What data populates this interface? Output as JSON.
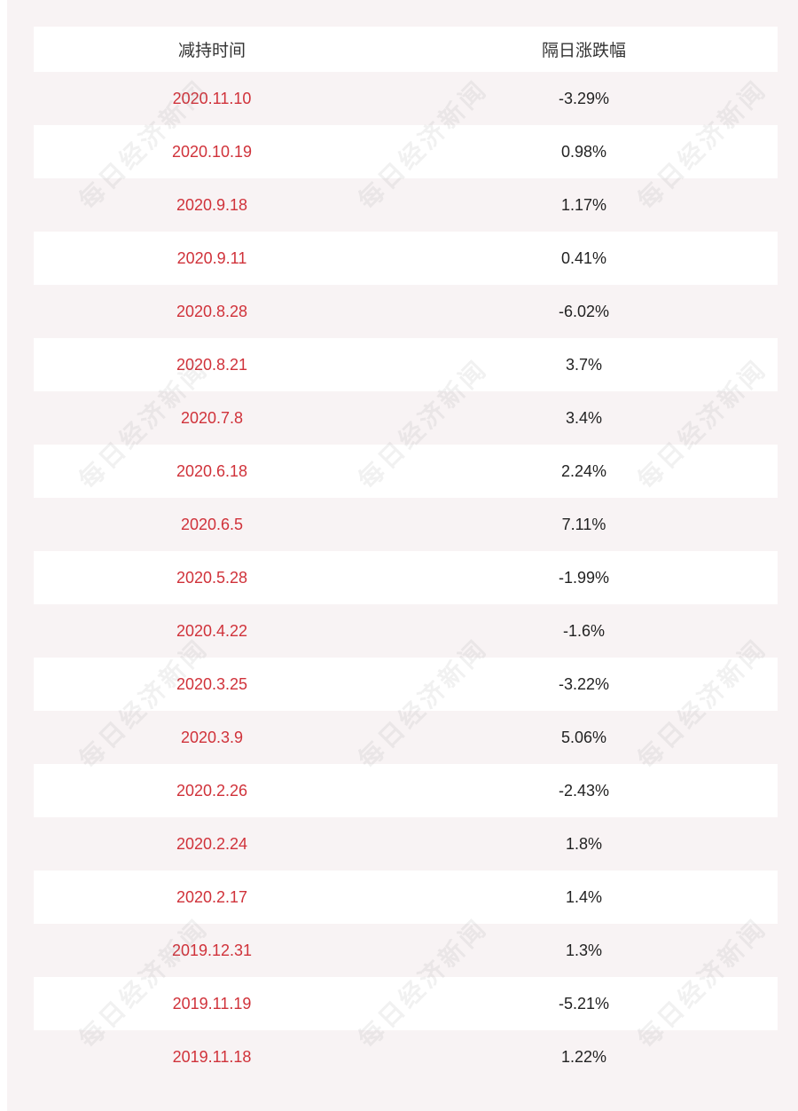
{
  "table": {
    "headers": [
      "减持时间",
      "隔日涨跌幅"
    ],
    "rows": [
      {
        "date": "2020.11.10",
        "change": "-3.29%"
      },
      {
        "date": "2020.10.19",
        "change": "0.98%"
      },
      {
        "date": "2020.9.18",
        "change": "1.17%"
      },
      {
        "date": "2020.9.11",
        "change": "0.41%"
      },
      {
        "date": "2020.8.28",
        "change": "-6.02%"
      },
      {
        "date": "2020.8.21",
        "change": "3.7%"
      },
      {
        "date": "2020.7.8",
        "change": "3.4%"
      },
      {
        "date": "2020.6.18",
        "change": "2.24%"
      },
      {
        "date": "2020.6.5",
        "change": "7.11%"
      },
      {
        "date": "2020.5.28",
        "change": "-1.99%"
      },
      {
        "date": "2020.4.22",
        "change": "-1.6%"
      },
      {
        "date": "2020.3.25",
        "change": "-3.22%"
      },
      {
        "date": "2020.3.9",
        "change": "5.06%"
      },
      {
        "date": "2020.2.26",
        "change": "-2.43%"
      },
      {
        "date": "2020.2.24",
        "change": "1.8%"
      },
      {
        "date": "2020.2.17",
        "change": "1.4%"
      },
      {
        "date": "2019.12.31",
        "change": "1.3%"
      },
      {
        "date": "2019.11.19",
        "change": "-5.21%"
      },
      {
        "date": "2019.11.18",
        "change": "1.22%"
      }
    ]
  },
  "watermark": {
    "text": "每日经济新闻"
  },
  "colors": {
    "date_text": "#d0323a",
    "panel_bg": "#f8f3f4",
    "value_text": "#222222"
  }
}
